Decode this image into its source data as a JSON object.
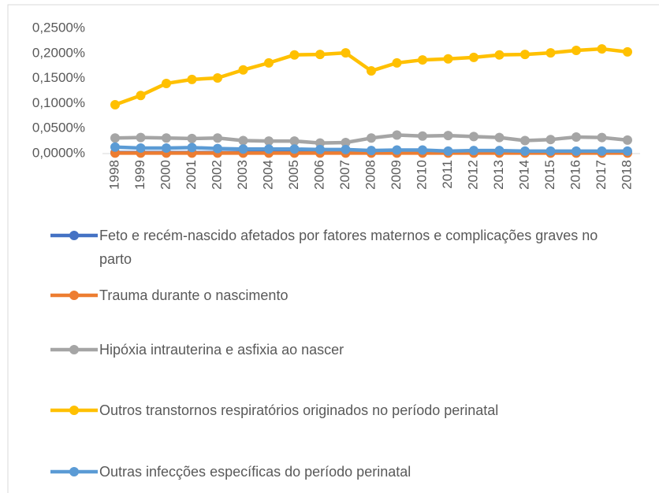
{
  "chart_data": {
    "type": "line",
    "categories": [
      "1998",
      "1999",
      "2000",
      "2001",
      "2002",
      "2003",
      "2004",
      "2005",
      "2006",
      "2007",
      "2008",
      "2009",
      "2010",
      "2011",
      "2012",
      "2013",
      "2014",
      "2015",
      "2016",
      "2017",
      "2018"
    ],
    "series": [
      {
        "name": "Feto e recém-nascido afetados por fatores maternos e complicações graves no parto",
        "color": "#4472c4",
        "values": [
          0.002,
          0.002,
          0.002,
          0.002,
          0.002,
          0.002,
          0.002,
          0.002,
          0.002,
          0.002,
          0.002,
          0.002,
          0.002,
          0.002,
          0.002,
          0.002,
          0.002,
          0.002,
          0.002,
          0.002,
          0.002
        ]
      },
      {
        "name": "Trauma durante o nascimento",
        "color": "#ed7d31",
        "values": [
          0.001,
          0.001,
          0.001,
          0.001,
          0.001,
          0.001,
          0.001,
          0.001,
          0.001,
          0.001,
          0.001,
          0.001,
          0.001,
          0.001,
          0.001,
          0.001,
          0.001,
          0.001,
          0.001,
          0.001,
          0.001
        ]
      },
      {
        "name": "Hipóxia intrauterina e asfixia ao nascer",
        "color": "#a5a5a5",
        "values": [
          0.031,
          0.032,
          0.031,
          0.03,
          0.031,
          0.026,
          0.025,
          0.025,
          0.021,
          0.022,
          0.031,
          0.037,
          0.035,
          0.036,
          0.034,
          0.032,
          0.026,
          0.028,
          0.033,
          0.032,
          0.027
        ]
      },
      {
        "name": "Outros transtornos respiratórios originados no período perinatal",
        "color": "#ffc000",
        "values": [
          0.0975,
          0.116,
          0.14,
          0.148,
          0.151,
          0.167,
          0.181,
          0.197,
          0.198,
          0.201,
          0.165,
          0.181,
          0.187,
          0.189,
          0.192,
          0.197,
          0.198,
          0.201,
          0.206,
          0.209,
          0.203
        ]
      },
      {
        "name": "Outras infecções específicas do período perinatal",
        "color": "#5b9bd5",
        "values": [
          0.013,
          0.011,
          0.011,
          0.012,
          0.01,
          0.009,
          0.009,
          0.009,
          0.008,
          0.008,
          0.006,
          0.007,
          0.007,
          0.005,
          0.006,
          0.006,
          0.005,
          0.005,
          0.005,
          0.005,
          0.005
        ]
      }
    ],
    "ylim": [
      0,
      0.25
    ],
    "yticks": [
      {
        "value": 0,
        "label": "0,0000%"
      },
      {
        "value": 0.05,
        "label": "0,0500%"
      },
      {
        "value": 0.1,
        "label": "0,1000%"
      },
      {
        "value": 0.15,
        "label": "0,1500%"
      },
      {
        "value": 0.2,
        "label": "0,2000%"
      },
      {
        "value": 0.25,
        "label": "0,2500%"
      }
    ],
    "grid": false
  }
}
